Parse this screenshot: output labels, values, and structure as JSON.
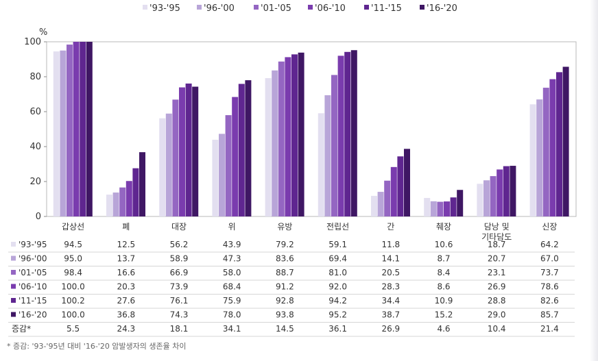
{
  "chart_data": {
    "type": "bar",
    "unit_label": "%",
    "ylim": [
      0,
      100
    ],
    "yticks": [
      "0",
      "20",
      "40",
      "60",
      "80",
      "100"
    ],
    "categories": [
      [
        "갑상선"
      ],
      [
        "폐"
      ],
      [
        "대장"
      ],
      [
        "위"
      ],
      [
        "유방"
      ],
      [
        "전립선"
      ],
      [
        "간"
      ],
      [
        "췌장"
      ],
      [
        "담낭 및",
        "기타담도"
      ],
      [
        "신장"
      ]
    ],
    "series": [
      {
        "name": "'93-'95",
        "color": "#e3dff0",
        "values": [
          94.5,
          12.5,
          56.2,
          43.9,
          79.2,
          59.1,
          11.8,
          10.6,
          18.7,
          64.2
        ]
      },
      {
        "name": "'96-'00",
        "color": "#b8a5d8",
        "values": [
          95.0,
          13.7,
          58.9,
          47.3,
          83.6,
          69.4,
          14.1,
          8.7,
          20.7,
          67.0
        ]
      },
      {
        "name": "'01-'05",
        "color": "#9466c2",
        "values": [
          98.4,
          16.6,
          66.9,
          58.0,
          88.7,
          81.0,
          20.5,
          8.4,
          23.1,
          73.7
        ]
      },
      {
        "name": "'06-'10",
        "color": "#7a3cae",
        "values": [
          100.0,
          20.3,
          73.9,
          68.4,
          91.2,
          92.0,
          28.3,
          8.6,
          26.9,
          78.6
        ]
      },
      {
        "name": "'11-'15",
        "color": "#5f2690",
        "values": [
          100.2,
          27.6,
          76.1,
          75.9,
          92.8,
          94.2,
          34.4,
          10.9,
          28.8,
          82.6
        ]
      },
      {
        "name": "'16-'20",
        "color": "#3f1764",
        "values": [
          100.0,
          36.8,
          74.3,
          78.0,
          93.8,
          95.2,
          38.7,
          15.2,
          29.0,
          85.7
        ]
      }
    ],
    "table": {
      "rows": [
        {
          "label": "'93-'95",
          "cells": [
            "94.5",
            "12.5",
            "56.2",
            "43.9",
            "79.2",
            "59.1",
            "11.8",
            "10.6",
            "18.7",
            "64.2"
          ]
        },
        {
          "label": "'96-'00",
          "cells": [
            "95.0",
            "13.7",
            "58.9",
            "47.3",
            "83.6",
            "69.4",
            "14.1",
            "8.7",
            "20.7",
            "67.0"
          ]
        },
        {
          "label": "'01-'05",
          "cells": [
            "98.4",
            "16.6",
            "66.9",
            "58.0",
            "88.7",
            "81.0",
            "20.5",
            "8.4",
            "23.1",
            "73.7"
          ]
        },
        {
          "label": "'06-'10",
          "cells": [
            "100.0",
            "20.3",
            "73.9",
            "68.4",
            "91.2",
            "92.0",
            "28.3",
            "8.6",
            "26.9",
            "78.6"
          ]
        },
        {
          "label": "'11-'15",
          "cells": [
            "100.2",
            "27.6",
            "76.1",
            "75.9",
            "92.8",
            "94.2",
            "34.4",
            "10.9",
            "28.8",
            "82.6"
          ]
        },
        {
          "label": "'16-'20",
          "cells": [
            "100.0",
            "36.8",
            "74.3",
            "78.0",
            "93.8",
            "95.2",
            "38.7",
            "15.2",
            "29.0",
            "85.7"
          ]
        }
      ],
      "diff_row": {
        "label": "증감*",
        "cells": [
          "5.5",
          "24.3",
          "18.1",
          "34.1",
          "14.5",
          "36.1",
          "26.9",
          "4.6",
          "10.4",
          "21.4"
        ]
      }
    },
    "footnote": "* 증감: '93-'95년 대비 '16-'20 암발생자의 생존율 차이",
    "legend_position": "top",
    "grid": false
  }
}
